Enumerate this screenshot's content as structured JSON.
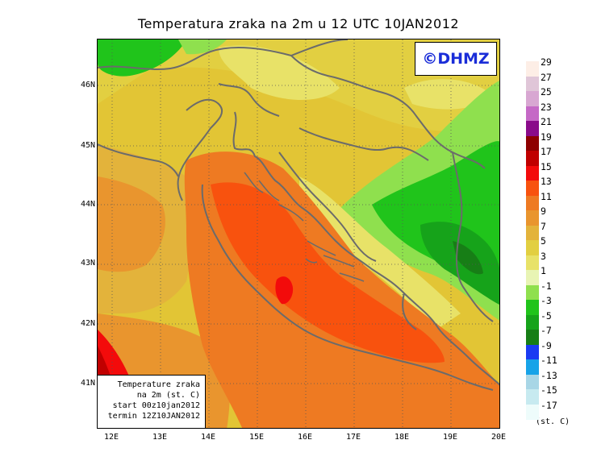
{
  "title": "Temperatura zraka na 2m u 12 UTC 10JAN2012",
  "logo": "©DHMZ",
  "info_box": {
    "line1": "Temperature zraka",
    "line2": "na 2m (st. C)",
    "line3": "start 00z10jan2012",
    "line4": "termin 12Z10JAN2012"
  },
  "lat_labels": [
    "46N",
    "45N",
    "44N",
    "43N",
    "42N",
    "41N"
  ],
  "lon_labels": [
    "12E",
    "13E",
    "14E",
    "15E",
    "16E",
    "17E",
    "18E",
    "19E",
    "20E"
  ],
  "legend": {
    "unit": "(st. C)",
    "entries": [
      {
        "label": "29",
        "color": "#fdeee6"
      },
      {
        "label": "27",
        "color": "#e0c6d8"
      },
      {
        "label": "25",
        "color": "#d8a7d2"
      },
      {
        "label": "23",
        "color": "#c569c6"
      },
      {
        "label": "21",
        "color": "#8a0b8a"
      },
      {
        "label": "19",
        "color": "#8e0000"
      },
      {
        "label": "17",
        "color": "#c00000"
      },
      {
        "label": "15",
        "color": "#f30b0b"
      },
      {
        "label": "13",
        "color": "#f8520e"
      },
      {
        "label": "11",
        "color": "#ee7a22"
      },
      {
        "label": "9",
        "color": "#e9952e"
      },
      {
        "label": "7",
        "color": "#e3b33b"
      },
      {
        "label": "5",
        "color": "#e2cf41"
      },
      {
        "label": "3",
        "color": "#e8e268"
      },
      {
        "label": "1",
        "color": "#e8f4b4"
      },
      {
        "label": "-1",
        "color": "#8fe04e"
      },
      {
        "label": "-3",
        "color": "#20c41b"
      },
      {
        "label": "-5",
        "color": "#16a31a"
      },
      {
        "label": "-7",
        "color": "#177e16"
      },
      {
        "label": "-9",
        "color": "#1a3bf2"
      },
      {
        "label": "-11",
        "color": "#17a3e8"
      },
      {
        "label": "-13",
        "color": "#a8d6e6"
      },
      {
        "label": "-15",
        "color": "#c7eaf0"
      },
      {
        "label": "-17",
        "color": "#eefcfb"
      }
    ]
  }
}
